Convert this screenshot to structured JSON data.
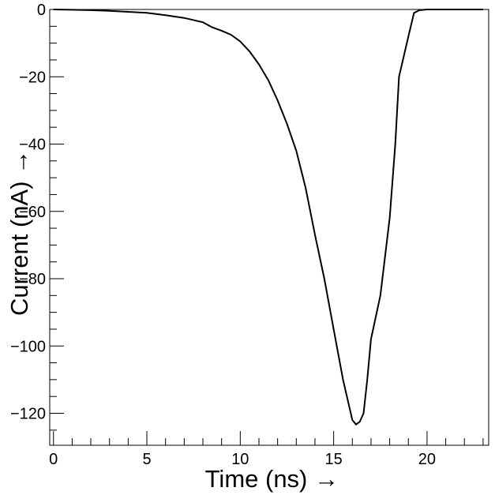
{
  "chart_data": {
    "type": "line",
    "title": "",
    "xlabel": "Time (ns) →",
    "ylabel": "Current (nA) →",
    "xlim": [
      -0.2,
      23.3
    ],
    "ylim": [
      -129.5,
      0
    ],
    "x_ticks": [
      0,
      5,
      10,
      15,
      20
    ],
    "y_ticks": [
      0,
      -20,
      -40,
      -60,
      -80,
      -100,
      -120
    ],
    "x_tick_labels": [
      "0",
      "5",
      "10",
      "15",
      "20"
    ],
    "y_tick_labels": [
      "0",
      "−20",
      "−40",
      "−60",
      "−80",
      "−100",
      "−120"
    ],
    "grid": false,
    "legend": "none",
    "line_color": "#000000",
    "series": [
      {
        "x": [
          0,
          1,
          2,
          3,
          4,
          5,
          6,
          7,
          8,
          8.5,
          9,
          9.5,
          10,
          10.5,
          11,
          11.5,
          12,
          12.5,
          13,
          13.5,
          14,
          14.5,
          15,
          15.5,
          16,
          16.2,
          16.4,
          16.6,
          16.8,
          17,
          17.5,
          18,
          18.3,
          18.5,
          19,
          19.3,
          19.6,
          20,
          21,
          22,
          23
        ],
        "y": [
          0,
          -0.1,
          -0.2,
          -0.4,
          -0.7,
          -1.0,
          -1.7,
          -2.5,
          -3.8,
          -5.3,
          -6.3,
          -7.5,
          -9.5,
          -12.5,
          -16.3,
          -21,
          -27,
          -34,
          -42,
          -53,
          -67,
          -80,
          -95,
          -110,
          -122,
          -123.3,
          -122.5,
          -120,
          -110,
          -98,
          -85,
          -62,
          -40,
          -20,
          -8,
          -1,
          -0.2,
          0,
          0,
          0,
          0
        ]
      }
    ]
  }
}
